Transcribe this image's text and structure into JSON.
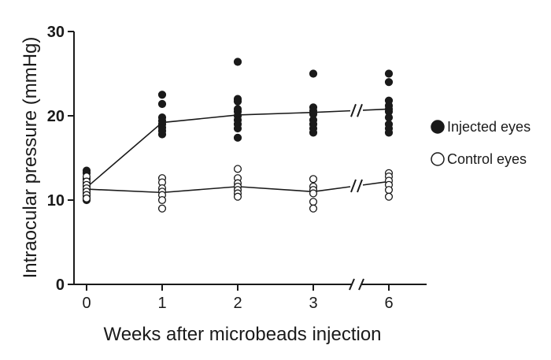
{
  "chart_data": {
    "type": "scatter",
    "title": "",
    "xlabel": "Weeks after microbeads injection",
    "ylabel": "Intraocular pressure (mmHg)",
    "ylim": [
      0,
      30
    ],
    "yticks": [
      {
        "value": 0,
        "label": "0"
      },
      {
        "value": 10,
        "label": "10"
      },
      {
        "value": 20,
        "label": "20"
      },
      {
        "value": 30,
        "label": "30"
      }
    ],
    "categories": [
      "0",
      "1",
      "2",
      "3",
      "6"
    ],
    "axis_break_between": [
      "3",
      "6"
    ],
    "legend_position": "right",
    "series": [
      {
        "name": "Injected eyes",
        "marker": "filled-circle",
        "color": "#1a1a1a",
        "mean_line": [
          11.5,
          19.2,
          20.1,
          20.4,
          20.8
        ],
        "points": [
          [
            13.5,
            13.2,
            12.5,
            12.0,
            11.6,
            11.2,
            10.8,
            10.5,
            10.2,
            10.0
          ],
          [
            22.5,
            21.4,
            19.8,
            19.4,
            19.0,
            18.6,
            18.2,
            17.8
          ],
          [
            26.4,
            22.0,
            21.7,
            20.8,
            20.5,
            20.0,
            19.5,
            19.0,
            18.5,
            17.4
          ],
          [
            25.0,
            21.0,
            20.6,
            20.2,
            19.5,
            19.0,
            18.5,
            18.0
          ],
          [
            25.0,
            24.0,
            21.8,
            21.2,
            20.8,
            20.5,
            19.8,
            19.0,
            18.5,
            18.0
          ]
        ]
      },
      {
        "name": "Control eyes",
        "marker": "open-circle",
        "color": "#1a1a1a",
        "mean_line": [
          11.3,
          10.9,
          11.6,
          11.0,
          12.2
        ],
        "points": [
          [
            12.8,
            12.2,
            11.8,
            11.4,
            11.0,
            10.6,
            10.2
          ],
          [
            12.6,
            12.1,
            11.4,
            11.0,
            10.6,
            10.0,
            9.0
          ],
          [
            13.7,
            12.6,
            12.0,
            11.6,
            11.2,
            10.8,
            10.4
          ],
          [
            12.5,
            11.6,
            11.2,
            10.8,
            9.8,
            9.0
          ],
          [
            13.2,
            12.8,
            12.3,
            11.8,
            11.2,
            10.4
          ]
        ]
      }
    ]
  }
}
